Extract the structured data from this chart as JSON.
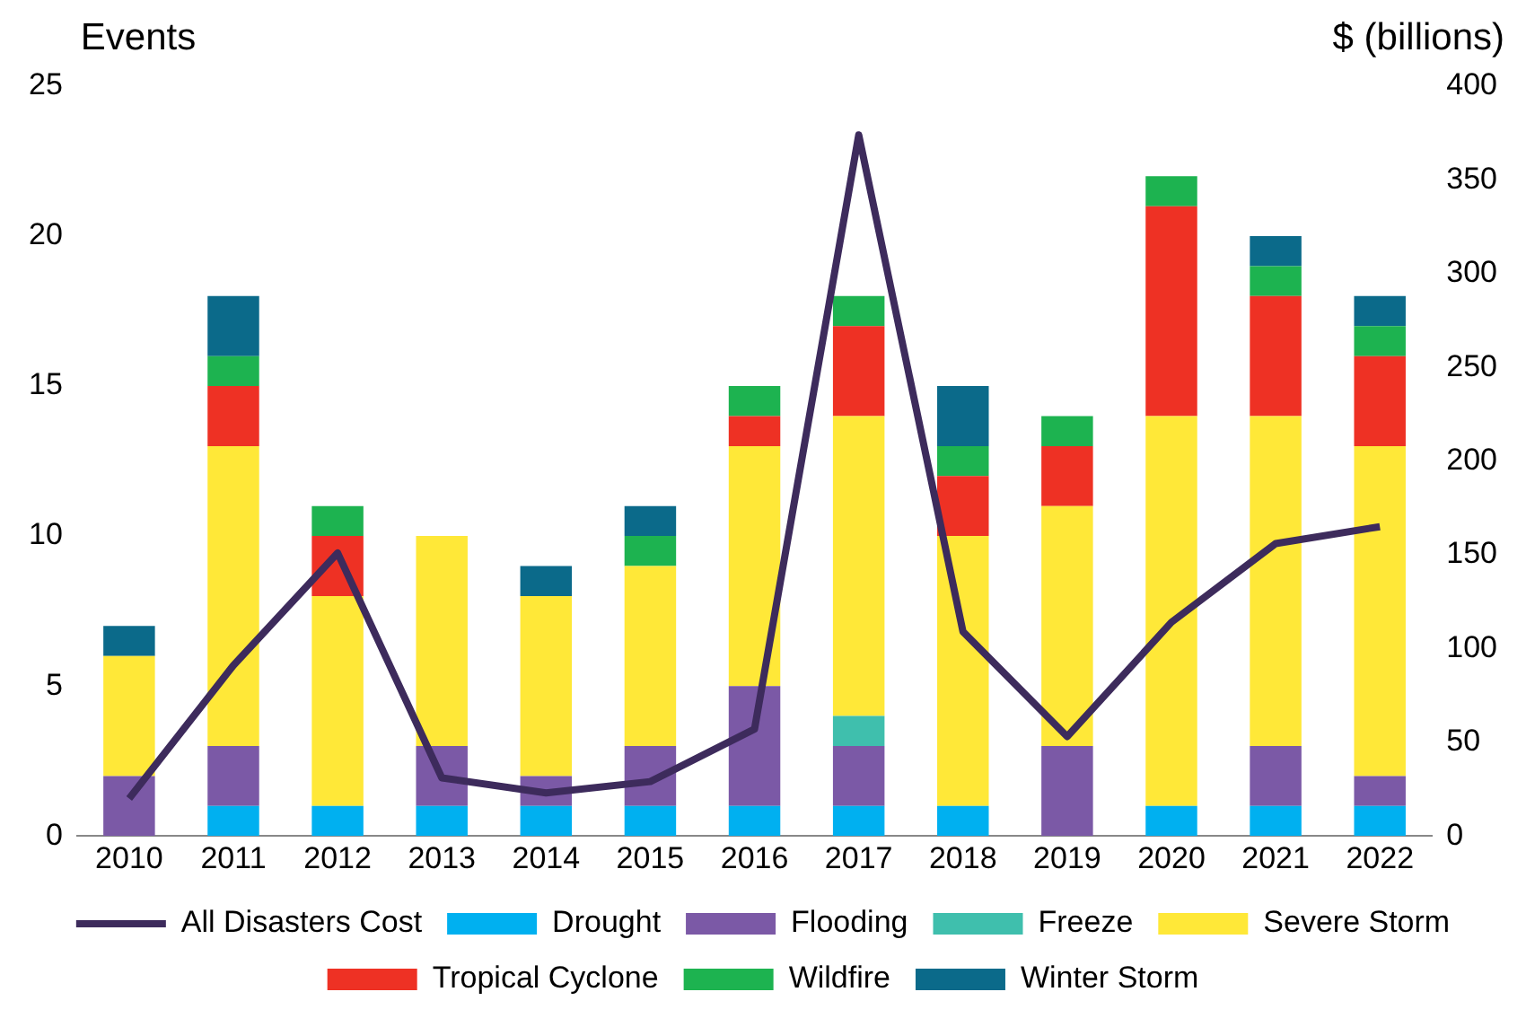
{
  "chart_data": {
    "type": "bar",
    "stacked": true,
    "ylabel": "Events",
    "y2label": "$ (billions)",
    "categories": [
      "2010",
      "2011",
      "2012",
      "2013",
      "2014",
      "2015",
      "2016",
      "2017",
      "2018",
      "2019",
      "2020",
      "2021",
      "2022"
    ],
    "series": [
      {
        "name": "Drought",
        "color": "#00b0f0",
        "values": [
          0,
          1,
          1,
          1,
          1,
          1,
          1,
          1,
          1,
          0,
          1,
          1,
          1
        ]
      },
      {
        "name": "Flooding",
        "color": "#7b59a6",
        "values": [
          2,
          2,
          0,
          2,
          1,
          2,
          4,
          2,
          0,
          3,
          0,
          2,
          1
        ]
      },
      {
        "name": "Freeze",
        "color": "#3fbfad",
        "values": [
          0,
          0,
          0,
          0,
          0,
          0,
          0,
          1,
          0,
          0,
          0,
          0,
          0
        ]
      },
      {
        "name": "Severe Storm",
        "color": "#ffe838",
        "values": [
          4,
          10,
          7,
          7,
          6,
          6,
          8,
          10,
          9,
          8,
          13,
          11,
          11
        ]
      },
      {
        "name": "Tropical Cyclone",
        "color": "#ee3124",
        "values": [
          0,
          2,
          2,
          0,
          0,
          0,
          1,
          3,
          2,
          2,
          7,
          4,
          3
        ]
      },
      {
        "name": "Wildfire",
        "color": "#1db350",
        "values": [
          0,
          1,
          1,
          0,
          0,
          1,
          1,
          1,
          1,
          1,
          1,
          1,
          1
        ]
      },
      {
        "name": "Winter Storm",
        "color": "#0b6a8a",
        "values": [
          1,
          2,
          0,
          0,
          1,
          1,
          0,
          0,
          2,
          0,
          0,
          1,
          1
        ]
      },
      {
        "name": "All Disasters Cost",
        "type": "line",
        "axis": "y2",
        "color": "#3d2b5c",
        "values": [
          20,
          91,
          151,
          31,
          23,
          29,
          57,
          374,
          109,
          53,
          114,
          156,
          165
        ]
      }
    ],
    "ylim": [
      0,
      25
    ],
    "yticks": [
      0,
      5,
      10,
      15,
      20,
      25
    ],
    "y2lim": [
      0,
      400
    ],
    "y2ticks": [
      0,
      50,
      100,
      150,
      200,
      250,
      300,
      350,
      400
    ],
    "grid": false,
    "legend": "bottom",
    "marker": "none",
    "line_style": "solid"
  }
}
